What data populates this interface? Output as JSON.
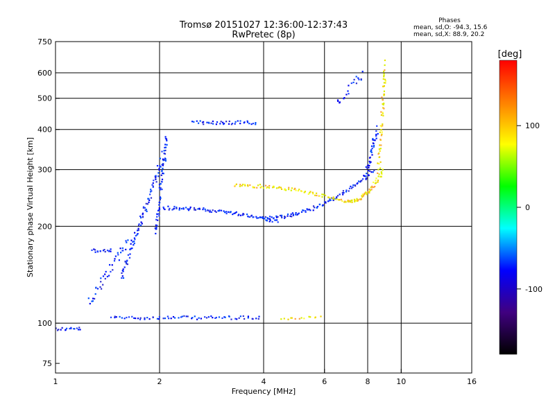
{
  "chart_data": {
    "type": "scatter",
    "title": "Tromsø 20151027 12:36:00-12:37:43",
    "subtitle": "RwPretec (8p)",
    "xlabel": "Frequency [MHz]",
    "ylabel": "Stationary phase Virtual Height [km]",
    "x_scale": "log",
    "y_scale": "log",
    "xlim": [
      1,
      16
    ],
    "ylim": [
      70,
      750
    ],
    "x_ticks": [
      1,
      2,
      4,
      6,
      8,
      10,
      16
    ],
    "y_ticks": [
      75,
      100,
      200,
      300,
      400,
      500,
      600,
      750
    ],
    "x_grid": [
      2,
      4,
      6,
      8,
      10
    ],
    "y_grid": [
      100,
      200,
      300,
      400,
      500,
      600
    ],
    "grid": true,
    "stats_header": "Phases",
    "stats": [
      "mean, sd,O: -94.3, 15.6",
      "mean, sd,X:  88.9, 20.2"
    ],
    "colorbar": {
      "label": "[deg]",
      "range": [
        -180,
        180
      ],
      "ticks": [
        100,
        0,
        -100
      ],
      "colors": [
        "#ff0000",
        "#ff8000",
        "#ffff00",
        "#00ff00",
        "#00ffff",
        "#0000ff",
        "#400080",
        "#000000"
      ]
    },
    "series": [
      {
        "name": "O",
        "phase_mean": -94.3,
        "phase_sd": 15.6,
        "color": "#0020ff",
        "traces": [
          {
            "kind": "flat",
            "f": [
              1.0,
              1.18
            ],
            "h": 96,
            "n": 18
          },
          {
            "kind": "flat",
            "f": [
              1.45,
              3.9
            ],
            "h": 104,
            "n": 70
          },
          {
            "kind": "flat",
            "f": [
              1.28,
              1.45
            ],
            "h": 168,
            "n": 16
          },
          {
            "kind": "rise",
            "f": [
              1.25,
              1.62
            ],
            "h": [
              115,
              180
            ],
            "n": 40
          },
          {
            "kind": "rise",
            "f": [
              1.55,
              2.05
            ],
            "h": [
              140,
              330
            ],
            "n": 90
          },
          {
            "kind": "rise",
            "f": [
              1.95,
              2.1
            ],
            "h": [
              190,
              380
            ],
            "n": 60
          },
          {
            "kind": "arc",
            "f": [
              2.05,
              4.4
            ],
            "h": [
              228,
              207
            ],
            "n": 90
          },
          {
            "kind": "arc",
            "f": [
              4.0,
              8.3
            ],
            "h": [
              212,
              300
            ],
            "n": 100
          },
          {
            "kind": "rise",
            "f": [
              7.9,
              8.5
            ],
            "h": [
              280,
              400
            ],
            "n": 40
          },
          {
            "kind": "flat",
            "f": [
              2.5,
              3.8
            ],
            "h": 420,
            "n": 40
          },
          {
            "kind": "rise",
            "f": [
              6.5,
              7.8
            ],
            "h": [
              480,
              600
            ],
            "n": 20
          }
        ]
      },
      {
        "name": "X",
        "phase_mean": 88.9,
        "phase_sd": 20.2,
        "color": "#e6e600",
        "traces": [
          {
            "kind": "arc",
            "f": [
              3.3,
              7.0
            ],
            "h": [
              268,
              238
            ],
            "n": 80
          },
          {
            "kind": "arc",
            "f": [
              7.0,
              8.9
            ],
            "h": [
              238,
              300
            ],
            "n": 60
          },
          {
            "kind": "rise",
            "f": [
              8.6,
              9.0
            ],
            "h": [
              300,
              640
            ],
            "n": 60
          },
          {
            "kind": "flat",
            "f": [
              4.5,
              5.8
            ],
            "h": 104,
            "n": 14
          }
        ]
      }
    ]
  }
}
